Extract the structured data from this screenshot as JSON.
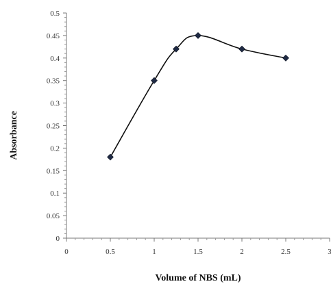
{
  "chart_data": {
    "type": "line",
    "title": "",
    "xlabel": "Volume of NBS (mL)",
    "ylabel": "Absorbance",
    "xlim": [
      0,
      3
    ],
    "ylim": [
      0,
      0.5
    ],
    "x_ticks": [
      0,
      0.5,
      1,
      1.5,
      2,
      2.5,
      3
    ],
    "x_tick_labels": [
      "0",
      "0.5",
      "1",
      "1.5",
      "2",
      "2.5",
      "3"
    ],
    "y_ticks": [
      0,
      0.05,
      0.1,
      0.15,
      0.2,
      0.25,
      0.3,
      0.35,
      0.4,
      0.45,
      0.5
    ],
    "y_tick_labels": [
      "0",
      "0.05",
      "0.1",
      "0.15",
      "0.2",
      "0.25",
      "0.3",
      "0.35",
      "0.4",
      "0.45",
      "0.5"
    ],
    "grid": false,
    "legend": "none",
    "smooth": true,
    "series": [
      {
        "x": [
          0.5,
          1.0,
          1.25,
          1.5,
          2.0,
          2.5
        ],
        "y": [
          0.18,
          0.35,
          0.42,
          0.45,
          0.42,
          0.4
        ],
        "line_color": "#111111",
        "marker": "diamond",
        "marker_color": "#1f2a44"
      }
    ]
  }
}
